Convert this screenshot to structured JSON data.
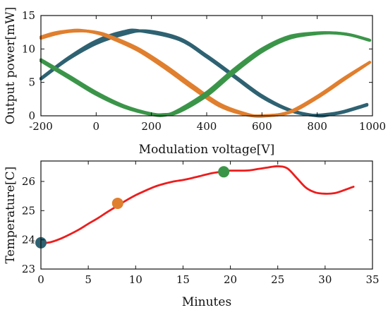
{
  "chart_data": [
    {
      "type": "line",
      "title": "",
      "xlabel": "Modulation voltage[V]",
      "ylabel": "Output power[mW]",
      "xlim": [
        -200,
        1000
      ],
      "ylim": [
        0,
        15
      ],
      "xticks": [
        -200,
        0,
        200,
        400,
        600,
        800,
        1000
      ],
      "yticks": [
        0,
        5,
        10,
        15
      ],
      "grid": false,
      "legend": "none",
      "series": [
        {
          "color": "#2e6272",
          "x": [
            -200,
            -100,
            0,
            100,
            180,
            300,
            400,
            500,
            600,
            700,
            800,
            850,
            900,
            980
          ],
          "y": [
            5.5,
            8.5,
            10.8,
            12.2,
            12.7,
            11.6,
            9.0,
            6.0,
            3.0,
            0.9,
            0.0,
            0.2,
            0.6,
            1.6
          ]
        },
        {
          "color": "#2e6272",
          "x": [
            -200,
            -100,
            0,
            100,
            160,
            300,
            400,
            500,
            600,
            700,
            780,
            850,
            900,
            980
          ],
          "y": [
            5.6,
            8.7,
            11.2,
            12.6,
            12.7,
            11.4,
            8.8,
            5.8,
            2.8,
            0.8,
            0.1,
            0.3,
            0.7,
            1.7
          ]
        },
        {
          "color": "#e07f2e",
          "x": [
            -200,
            -150,
            -100,
            -50,
            0,
            50,
            150,
            250,
            350,
            450,
            550,
            600,
            700,
            800,
            900,
            990
          ],
          "y": [
            11.6,
            12.2,
            12.6,
            12.7,
            12.5,
            11.9,
            10.1,
            7.5,
            4.5,
            1.7,
            0.2,
            0.0,
            0.5,
            2.7,
            5.5,
            8.0
          ]
        },
        {
          "color": "#e07f2e",
          "x": [
            -200,
            -150,
            -100,
            -60,
            0,
            50,
            150,
            250,
            350,
            450,
            550,
            620,
            700,
            800,
            900,
            990
          ],
          "y": [
            11.8,
            12.4,
            12.7,
            12.8,
            12.4,
            11.7,
            9.8,
            7.1,
            4.1,
            1.4,
            0.1,
            0.0,
            0.6,
            2.9,
            5.7,
            8.0
          ]
        },
        {
          "color": "#3b9549",
          "x": [
            -200,
            -100,
            0,
            100,
            200,
            250,
            300,
            400,
            500,
            600,
            700,
            800,
            860,
            920,
            990
          ],
          "y": [
            8.4,
            6.0,
            3.5,
            1.5,
            0.3,
            0.2,
            0.6,
            3.0,
            6.5,
            9.6,
            11.6,
            12.3,
            12.4,
            12.1,
            11.3
          ]
        },
        {
          "color": "#3b9549",
          "x": [
            -200,
            -100,
            0,
            100,
            200,
            250,
            300,
            400,
            500,
            600,
            700,
            800,
            860,
            920,
            990
          ],
          "y": [
            8.2,
            5.7,
            3.2,
            1.3,
            0.2,
            0.1,
            0.9,
            3.5,
            7.0,
            10.0,
            11.9,
            12.4,
            12.4,
            12.1,
            11.3
          ]
        }
      ]
    },
    {
      "type": "line",
      "title": "",
      "xlabel": "Minutes",
      "ylabel": "Temperature[C]",
      "xlim": [
        0,
        35
      ],
      "ylim": [
        23,
        26.7
      ],
      "xticks": [
        0,
        5,
        10,
        15,
        20,
        25,
        30,
        35
      ],
      "yticks": [
        23,
        24,
        25,
        26
      ],
      "grid": false,
      "legend": "none",
      "series": [
        {
          "color": "#ee1c1c",
          "x": [
            0,
            1,
            2,
            3,
            4,
            5,
            6,
            7,
            8,
            9,
            10,
            11,
            12,
            13,
            14,
            15,
            16,
            17,
            18,
            19,
            19.5,
            20,
            21,
            22,
            23,
            24,
            25,
            26,
            27,
            28,
            29,
            30,
            31,
            32,
            33
          ],
          "y": [
            23.88,
            23.92,
            24.03,
            24.18,
            24.35,
            24.55,
            24.74,
            24.95,
            25.15,
            25.35,
            25.53,
            25.68,
            25.82,
            25.92,
            26.0,
            26.05,
            26.12,
            26.2,
            26.28,
            26.33,
            26.35,
            26.37,
            26.37,
            26.38,
            26.43,
            26.48,
            26.52,
            26.45,
            26.12,
            25.78,
            25.62,
            25.58,
            25.6,
            25.7,
            25.82
          ]
        }
      ],
      "markers": [
        {
          "x": 0,
          "y": 23.9,
          "color": "#2e6272"
        },
        {
          "x": 8.1,
          "y": 25.25,
          "color": "#e07f2e"
        },
        {
          "x": 19.3,
          "y": 26.33,
          "color": "#3b9549"
        }
      ]
    }
  ]
}
